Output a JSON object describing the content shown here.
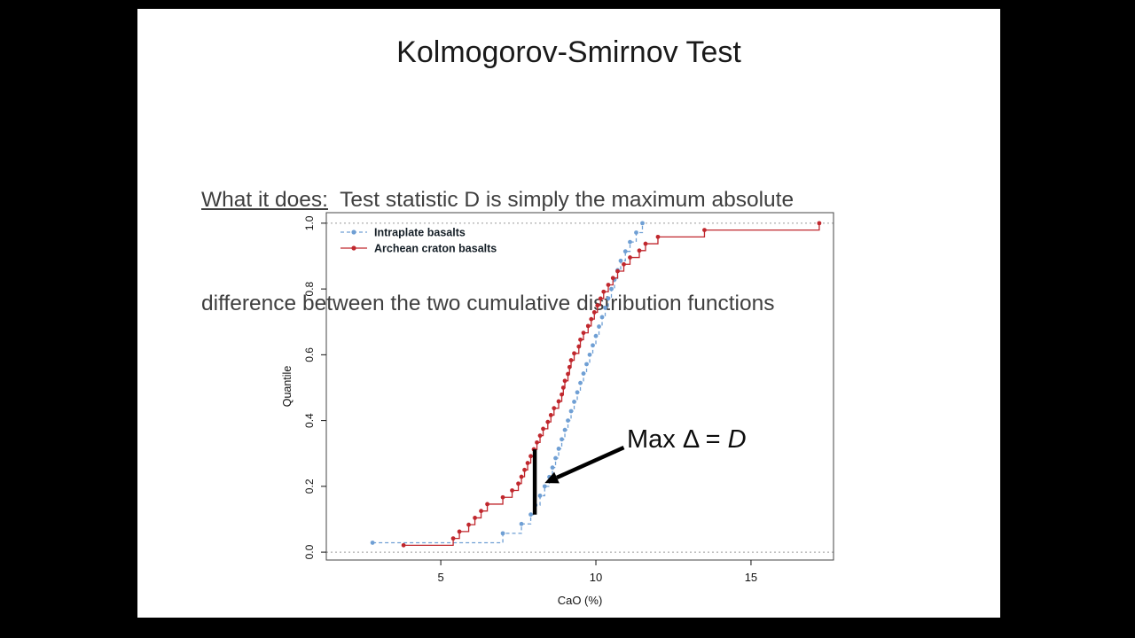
{
  "slide": {
    "title": "Kolmogorov-Smirnov Test",
    "body": {
      "label": "What it does:",
      "line1_rest": "  Test statistic D is simply the maximum absolute",
      "line2": "difference between the two cumulative distribution functions"
    },
    "annotation": {
      "prefix": "Max Δ = ",
      "d": "D"
    }
  },
  "chart_data": {
    "type": "line",
    "subtype": "ecdf-step",
    "title": "",
    "xlabel": "CaO (%)",
    "ylabel": "Quantile",
    "xlim": [
      1.31,
      17.66
    ],
    "ylim": [
      -0.024,
      1.032
    ],
    "x_ticks": [
      5,
      10,
      15
    ],
    "y_ticks": [
      0.0,
      0.2,
      0.4,
      0.6,
      0.8,
      1.0
    ],
    "grid_lines_at": [
      0.0,
      1.0
    ],
    "legend_position": "top-left",
    "series": [
      {
        "name": "Intraplate basalts",
        "color": "#6f9fd4",
        "line_style": "dashed",
        "values": [
          2.8,
          7.0,
          7.6,
          7.9,
          8.05,
          8.2,
          8.35,
          8.5,
          8.6,
          8.7,
          8.8,
          8.9,
          9.0,
          9.1,
          9.2,
          9.3,
          9.4,
          9.5,
          9.6,
          9.7,
          9.8,
          9.9,
          10.0,
          10.1,
          10.2,
          10.3,
          10.4,
          10.5,
          10.6,
          10.7,
          10.8,
          10.95,
          11.1,
          11.3,
          11.5
        ]
      },
      {
        "name": "Archean craton basalts",
        "color": "#c0272d",
        "line_style": "solid",
        "values": [
          3.8,
          5.4,
          5.6,
          5.9,
          6.1,
          6.3,
          6.5,
          7.0,
          7.3,
          7.5,
          7.6,
          7.7,
          7.8,
          7.9,
          8.0,
          8.1,
          8.2,
          8.3,
          8.45,
          8.55,
          8.65,
          8.8,
          8.9,
          8.95,
          9.0,
          9.1,
          9.15,
          9.2,
          9.3,
          9.45,
          9.5,
          9.6,
          9.75,
          9.85,
          9.95,
          10.05,
          10.15,
          10.25,
          10.4,
          10.55,
          10.7,
          10.9,
          11.1,
          11.4,
          11.6,
          12.0,
          13.5,
          17.2
        ]
      }
    ],
    "annotation": {
      "label": "Max Δ = D",
      "x": 8.03,
      "q_low": 0.114,
      "q_high": 0.3125,
      "arrow_from": {
        "x": 10.9,
        "q": 0.318
      },
      "arrow_to": {
        "x": 8.35,
        "q": 0.21
      }
    }
  }
}
